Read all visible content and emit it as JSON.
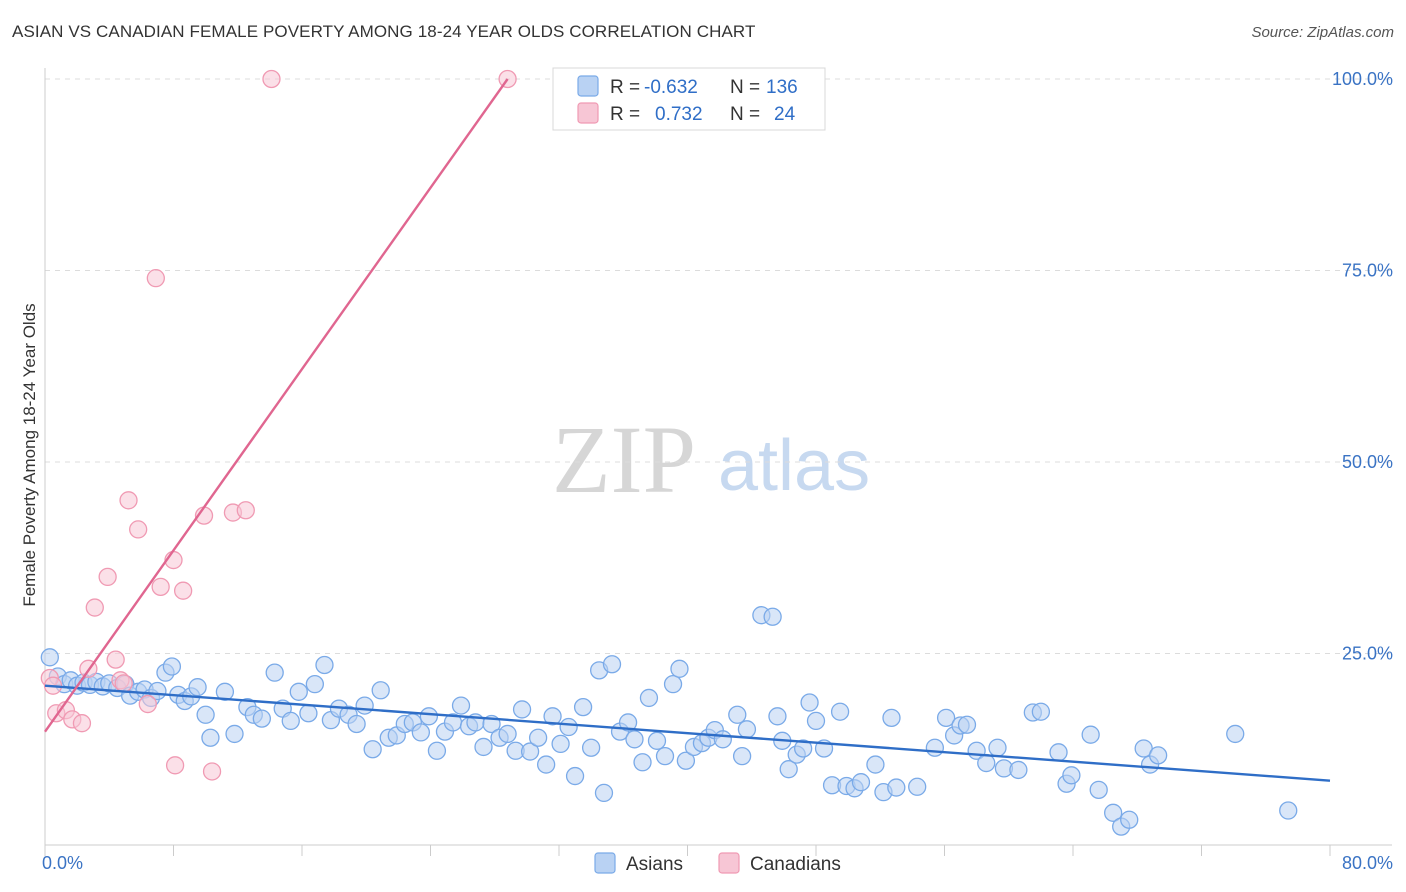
{
  "title": "ASIAN VS CANADIAN FEMALE POVERTY AMONG 18-24 YEAR OLDS CORRELATION CHART",
  "source": "Source: ZipAtlas.com",
  "watermark": {
    "zip": "ZIP",
    "atlas": "atlas"
  },
  "chart_data": {
    "type": "scatter",
    "title": "ASIAN VS CANADIAN FEMALE POVERTY AMONG 18-24 YEAR OLDS CORRELATION CHART",
    "xlabel": "",
    "ylabel": "Female Poverty Among 18-24 Year Olds",
    "xlim": [
      0,
      80
    ],
    "ylim": [
      0,
      100
    ],
    "x_tick_labels": [
      "0.0%",
      "80.0%"
    ],
    "y_ticks": [
      25,
      50,
      75,
      100
    ],
    "y_tick_labels": [
      "25.0%",
      "50.0%",
      "75.0%",
      "100.0%"
    ],
    "grid": true,
    "legend_position": "top-center",
    "stats": [
      {
        "series": "Asians",
        "r_label": "R =",
        "r": "-0.632",
        "n_label": "N =",
        "n": "136"
      },
      {
        "series": "Canadians",
        "r_label": "R =",
        "r": "0.732",
        "n_label": "N =",
        "n": "24"
      }
    ],
    "series": [
      {
        "name": "Asians",
        "color": "#7aaae8",
        "fill": "#b9d2f3",
        "line_color": "#2f6ec7",
        "trend": {
          "x": [
            0,
            80
          ],
          "y": [
            20.8,
            8.4
          ]
        },
        "points": [
          [
            0.3,
            24.5
          ],
          [
            0.8,
            22.0
          ],
          [
            1.2,
            21.0
          ],
          [
            1.6,
            21.5
          ],
          [
            2.0,
            20.8
          ],
          [
            2.4,
            21.2
          ],
          [
            2.8,
            20.9
          ],
          [
            3.2,
            21.3
          ],
          [
            3.6,
            20.7
          ],
          [
            4.0,
            21.1
          ],
          [
            4.5,
            20.5
          ],
          [
            5.0,
            21.0
          ],
          [
            5.3,
            19.5
          ],
          [
            5.8,
            20.0
          ],
          [
            6.2,
            20.3
          ],
          [
            6.6,
            19.2
          ],
          [
            7.0,
            20.1
          ],
          [
            7.5,
            22.5
          ],
          [
            7.9,
            23.3
          ],
          [
            8.3,
            19.6
          ],
          [
            8.7,
            18.8
          ],
          [
            9.1,
            19.4
          ],
          [
            9.5,
            20.6
          ],
          [
            10.0,
            17.0
          ],
          [
            10.3,
            14.0
          ],
          [
            11.2,
            20.0
          ],
          [
            11.8,
            14.5
          ],
          [
            12.6,
            18.0
          ],
          [
            13.0,
            17.0
          ],
          [
            13.5,
            16.5
          ],
          [
            14.3,
            22.5
          ],
          [
            14.8,
            17.8
          ],
          [
            15.3,
            16.2
          ],
          [
            15.8,
            20.0
          ],
          [
            16.4,
            17.2
          ],
          [
            16.8,
            21.0
          ],
          [
            17.4,
            23.5
          ],
          [
            17.8,
            16.3
          ],
          [
            18.3,
            17.8
          ],
          [
            18.9,
            17.0
          ],
          [
            19.4,
            15.8
          ],
          [
            19.9,
            18.2
          ],
          [
            20.4,
            12.5
          ],
          [
            20.9,
            20.2
          ],
          [
            21.4,
            14.0
          ],
          [
            21.9,
            14.3
          ],
          [
            22.4,
            15.8
          ],
          [
            22.9,
            16.0
          ],
          [
            23.4,
            14.7
          ],
          [
            23.9,
            16.8
          ],
          [
            24.4,
            12.3
          ],
          [
            24.9,
            14.8
          ],
          [
            25.4,
            16.0
          ],
          [
            25.9,
            18.2
          ],
          [
            26.4,
            15.5
          ],
          [
            26.8,
            16.0
          ],
          [
            27.3,
            12.8
          ],
          [
            27.8,
            15.8
          ],
          [
            28.3,
            14.0
          ],
          [
            28.8,
            14.5
          ],
          [
            29.3,
            12.3
          ],
          [
            29.7,
            17.7
          ],
          [
            30.2,
            12.2
          ],
          [
            30.7,
            14.0
          ],
          [
            31.2,
            10.5
          ],
          [
            31.6,
            16.8
          ],
          [
            32.1,
            13.2
          ],
          [
            32.6,
            15.4
          ],
          [
            33.0,
            9.0
          ],
          [
            33.5,
            18.0
          ],
          [
            34.0,
            12.7
          ],
          [
            34.5,
            22.8
          ],
          [
            34.8,
            6.8
          ],
          [
            35.3,
            23.6
          ],
          [
            35.8,
            14.8
          ],
          [
            36.3,
            16.0
          ],
          [
            36.7,
            13.8
          ],
          [
            37.2,
            10.8
          ],
          [
            37.6,
            19.2
          ],
          [
            38.1,
            13.6
          ],
          [
            38.6,
            11.6
          ],
          [
            39.1,
            21.0
          ],
          [
            39.5,
            23.0
          ],
          [
            39.9,
            11.0
          ],
          [
            40.4,
            12.8
          ],
          [
            40.9,
            13.3
          ],
          [
            41.3,
            14.0
          ],
          [
            41.7,
            15.0
          ],
          [
            42.2,
            13.8
          ],
          [
            43.1,
            17.0
          ],
          [
            43.4,
            11.6
          ],
          [
            43.7,
            15.1
          ],
          [
            44.6,
            30.0
          ],
          [
            45.3,
            29.8
          ],
          [
            45.6,
            16.8
          ],
          [
            45.9,
            13.6
          ],
          [
            46.3,
            9.9
          ],
          [
            46.8,
            11.8
          ],
          [
            47.2,
            12.6
          ],
          [
            47.6,
            18.6
          ],
          [
            48.0,
            16.2
          ],
          [
            48.5,
            12.6
          ],
          [
            49.0,
            7.8
          ],
          [
            49.5,
            17.4
          ],
          [
            49.9,
            7.7
          ],
          [
            50.4,
            7.4
          ],
          [
            50.8,
            8.2
          ],
          [
            51.7,
            10.5
          ],
          [
            52.2,
            6.9
          ],
          [
            52.7,
            16.6
          ],
          [
            53.0,
            7.5
          ],
          [
            54.3,
            7.6
          ],
          [
            55.4,
            12.7
          ],
          [
            56.1,
            16.6
          ],
          [
            56.6,
            14.3
          ],
          [
            57.0,
            15.6
          ],
          [
            57.4,
            15.7
          ],
          [
            58.0,
            12.3
          ],
          [
            58.6,
            10.7
          ],
          [
            59.3,
            12.7
          ],
          [
            59.7,
            10.0
          ],
          [
            60.6,
            9.8
          ],
          [
            61.5,
            17.3
          ],
          [
            62.0,
            17.4
          ],
          [
            63.1,
            12.1
          ],
          [
            63.6,
            8.0
          ],
          [
            63.9,
            9.1
          ],
          [
            65.1,
            14.4
          ],
          [
            65.6,
            7.2
          ],
          [
            66.5,
            4.2
          ],
          [
            67.0,
            2.4
          ],
          [
            67.5,
            3.3
          ],
          [
            68.4,
            12.6
          ],
          [
            68.8,
            10.5
          ],
          [
            69.3,
            11.7
          ],
          [
            74.1,
            14.5
          ],
          [
            77.4,
            4.5
          ]
        ]
      },
      {
        "name": "Canadians",
        "color": "#f09ab3",
        "fill": "#f7c6d5",
        "line_color": "#e06690",
        "trend": {
          "x": [
            0,
            28.8
          ],
          "y": [
            14.8,
            100
          ]
        },
        "points": [
          [
            0.3,
            21.8
          ],
          [
            0.5,
            20.8
          ],
          [
            0.7,
            17.2
          ],
          [
            1.3,
            17.6
          ],
          [
            1.7,
            16.4
          ],
          [
            2.3,
            15.9
          ],
          [
            2.7,
            23.0
          ],
          [
            3.1,
            31.0
          ],
          [
            3.9,
            35.0
          ],
          [
            4.4,
            24.2
          ],
          [
            4.7,
            21.5
          ],
          [
            4.9,
            21.1
          ],
          [
            5.2,
            45.0
          ],
          [
            5.8,
            41.2
          ],
          [
            6.4,
            18.4
          ],
          [
            6.9,
            74.0
          ],
          [
            7.2,
            33.7
          ],
          [
            8.0,
            37.2
          ],
          [
            8.1,
            10.4
          ],
          [
            8.6,
            33.2
          ],
          [
            9.9,
            43.0
          ],
          [
            10.4,
            9.6
          ],
          [
            11.7,
            43.4
          ],
          [
            12.5,
            43.7
          ],
          [
            14.1,
            100.0
          ],
          [
            28.8,
            100.0
          ]
        ]
      }
    ]
  }
}
